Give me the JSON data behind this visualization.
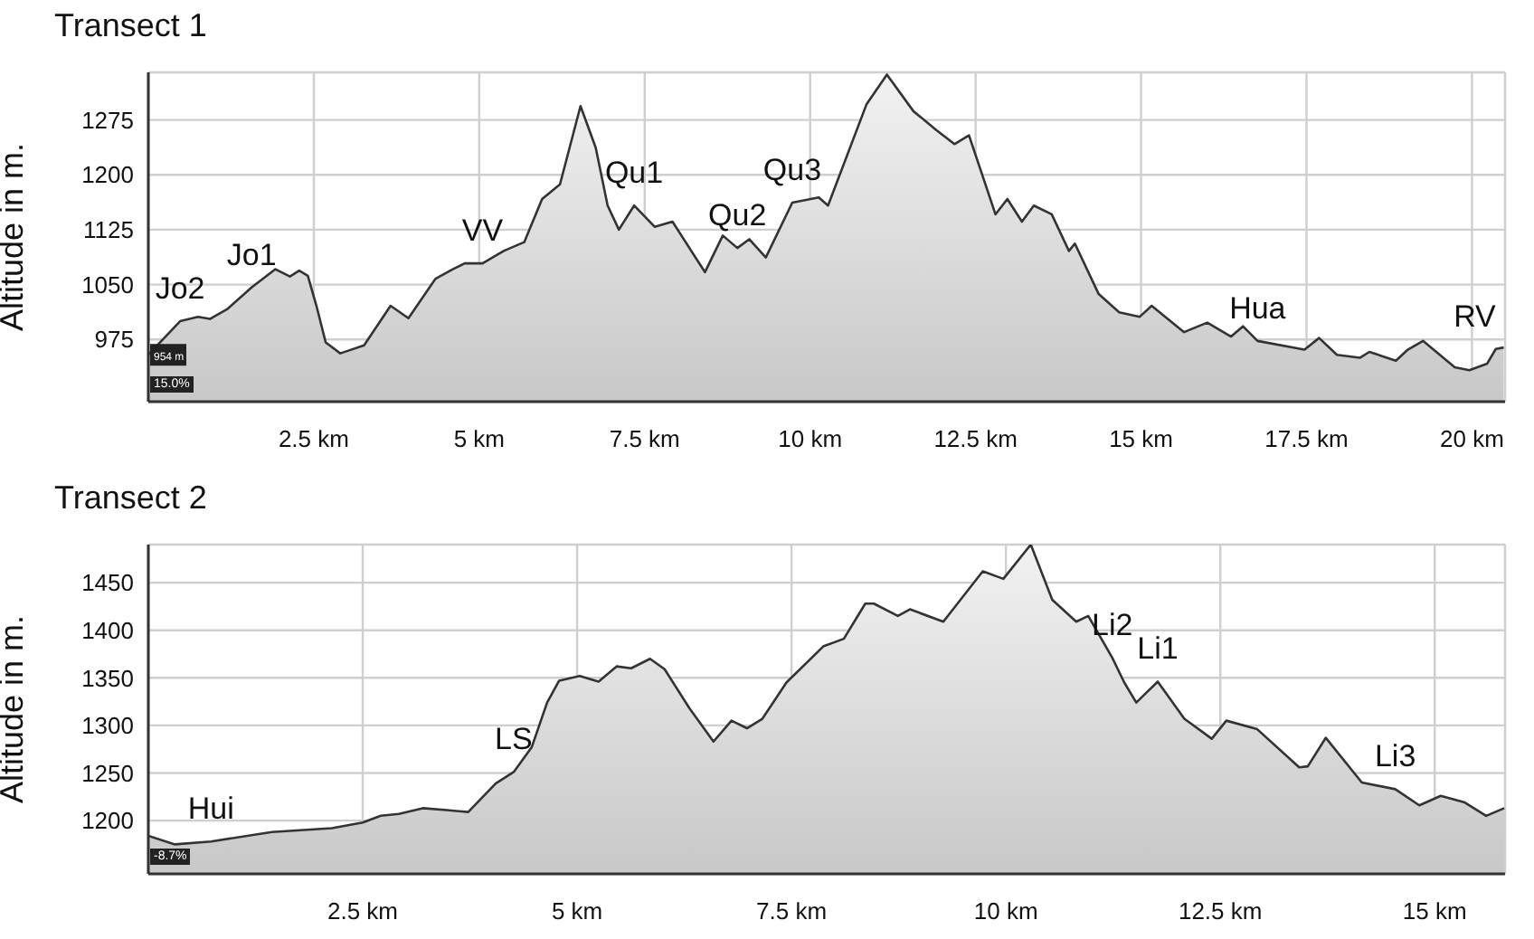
{
  "chart_data": [
    {
      "type": "area",
      "title": "Transect 1",
      "ylabel": "Altitude in m.",
      "grid": true,
      "xlim": [
        0,
        20.5
      ],
      "ylim": [
        890,
        1340
      ],
      "xticks": [
        {
          "value": 2.5,
          "label": "2.5 km"
        },
        {
          "value": 5,
          "label": "5 km"
        },
        {
          "value": 7.5,
          "label": "7.5 km"
        },
        {
          "value": 10,
          "label": "10 km"
        },
        {
          "value": 12.5,
          "label": "12.5 km"
        },
        {
          "value": 15,
          "label": "15 km"
        },
        {
          "value": 17.5,
          "label": "17.5 km"
        },
        {
          "value": 20,
          "label": "20 km"
        }
      ],
      "yticks": [
        975,
        1050,
        1125,
        1200,
        1275
      ],
      "series": [
        {
          "color": "#333333",
          "x": [
            0,
            0.48,
            0.75,
            0.93,
            1.2,
            1.56,
            1.92,
            2.14,
            2.28,
            2.41,
            2.54,
            2.68,
            2.9,
            3.26,
            3.66,
            3.93,
            4.34,
            4.6,
            4.78,
            5.05,
            5.37,
            5.68,
            5.95,
            6.22,
            6.53,
            6.76,
            6.94,
            7.11,
            7.34,
            7.65,
            7.92,
            8.41,
            8.68,
            8.9,
            9.08,
            9.33,
            9.73,
            10.13,
            10.27,
            10.85,
            11.16,
            11.56,
            11.91,
            12.18,
            12.4,
            12.8,
            12.98,
            13.2,
            13.38,
            13.65,
            13.91,
            14.0,
            14.36,
            14.67,
            14.98,
            15.16,
            15.65,
            16.0,
            16.36,
            16.54,
            16.76,
            17.47,
            17.69,
            17.96,
            18.31,
            18.45,
            18.85,
            19.03,
            19.26,
            19.74,
            19.96,
            20.23,
            20.36,
            20.48
          ],
          "values": [
            954,
            1000,
            1006,
            1003,
            1017,
            1046,
            1071,
            1061,
            1069,
            1062,
            1021,
            971,
            956,
            967,
            1021,
            1004,
            1058,
            1071,
            1079,
            1079,
            1096,
            1108,
            1167,
            1187,
            1294,
            1237,
            1158,
            1125,
            1158,
            1129,
            1136,
            1067,
            1117,
            1100,
            1112,
            1087,
            1162,
            1169,
            1158,
            1296,
            1337,
            1287,
            1261,
            1242,
            1254,
            1146,
            1167,
            1136,
            1158,
            1146,
            1096,
            1106,
            1037,
            1012,
            1006,
            1021,
            985,
            998,
            979,
            993,
            973,
            961,
            977,
            954,
            950,
            958,
            946,
            961,
            973,
            937,
            933,
            942,
            962,
            964
          ]
        }
      ],
      "annotations": [
        {
          "text": "Jo2",
          "x": 0.48,
          "y": 1000
        },
        {
          "text": "Jo1",
          "x": 1.56,
          "y": 1046
        },
        {
          "text": "VV",
          "x": 5.05,
          "y": 1079
        },
        {
          "text": "Qu1",
          "x": 7.34,
          "y": 1158
        },
        {
          "text": "Qu2",
          "x": 8.9,
          "y": 1100
        },
        {
          "text": "Qu3",
          "x": 9.73,
          "y": 1162
        },
        {
          "text": "Hua",
          "x": 16.76,
          "y": 973
        },
        {
          "text": "RV",
          "x": 20.36,
          "y": 962
        },
        {
          "text": "954 m",
          "x": 0,
          "y": 954
        },
        "15.0%"
      ]
    },
    {
      "type": "area",
      "title": "Transect 2",
      "ylabel": "Altitude in m.",
      "grid": true,
      "xlim": [
        0,
        15.82
      ],
      "ylim": [
        1144,
        1490
      ],
      "xticks": [
        {
          "value": 2.5,
          "label": "2.5 km"
        },
        {
          "value": 5,
          "label": "5 km"
        },
        {
          "value": 7.5,
          "label": "7.5 km"
        },
        {
          "value": 10,
          "label": "10 km"
        },
        {
          "value": 12.5,
          "label": "12.5 km"
        },
        {
          "value": 15,
          "label": "15 km"
        }
      ],
      "yticks": [
        1200,
        1250,
        1300,
        1350,
        1400,
        1450
      ],
      "series": [
        {
          "color": "#333333",
          "x": [
            0,
            0.31,
            0.73,
            1.44,
            2.14,
            2.5,
            2.71,
            2.92,
            3.2,
            3.48,
            3.73,
            4.05,
            4.26,
            4.47,
            4.65,
            4.79,
            5.03,
            5.25,
            5.46,
            5.63,
            5.85,
            6.02,
            6.31,
            6.59,
            6.8,
            6.98,
            7.16,
            7.44,
            7.87,
            8.11,
            8.36,
            8.46,
            8.74,
            8.88,
            9.27,
            9.73,
            9.97,
            10.29,
            10.54,
            10.82,
            10.96,
            11.24,
            11.38,
            11.52,
            11.77,
            12.08,
            12.4,
            12.57,
            12.93,
            13.42,
            13.52,
            13.73,
            14.15,
            14.54,
            14.82,
            15.07,
            15.35,
            15.6,
            15.81
          ],
          "values": [
            1184,
            1175,
            1178,
            1188,
            1192,
            1198,
            1205,
            1207,
            1213,
            1211,
            1209,
            1239,
            1251,
            1277,
            1324,
            1347,
            1352,
            1346,
            1362,
            1360,
            1370,
            1359,
            1318,
            1283,
            1305,
            1297,
            1307,
            1345,
            1383,
            1391,
            1428,
            1428,
            1415,
            1422,
            1409,
            1462,
            1454,
            1490,
            1432,
            1409,
            1415,
            1371,
            1345,
            1324,
            1346,
            1307,
            1286,
            1305,
            1296,
            1256,
            1257,
            1287,
            1240,
            1233,
            1216,
            1226,
            1219,
            1205,
            1213
          ]
        }
      ],
      "annotations": [
        {
          "text": "Hui",
          "x": 0.73,
          "y": 1178
        },
        {
          "text": "LS",
          "x": 4.26,
          "y": 1251
        },
        {
          "text": "Li2",
          "x": 11.24,
          "y": 1371
        },
        {
          "text": "Li1",
          "x": 11.77,
          "y": 1346
        },
        {
          "text": "Li3",
          "x": 14.54,
          "y": 1233
        },
        "-8.7%"
      ]
    }
  ]
}
